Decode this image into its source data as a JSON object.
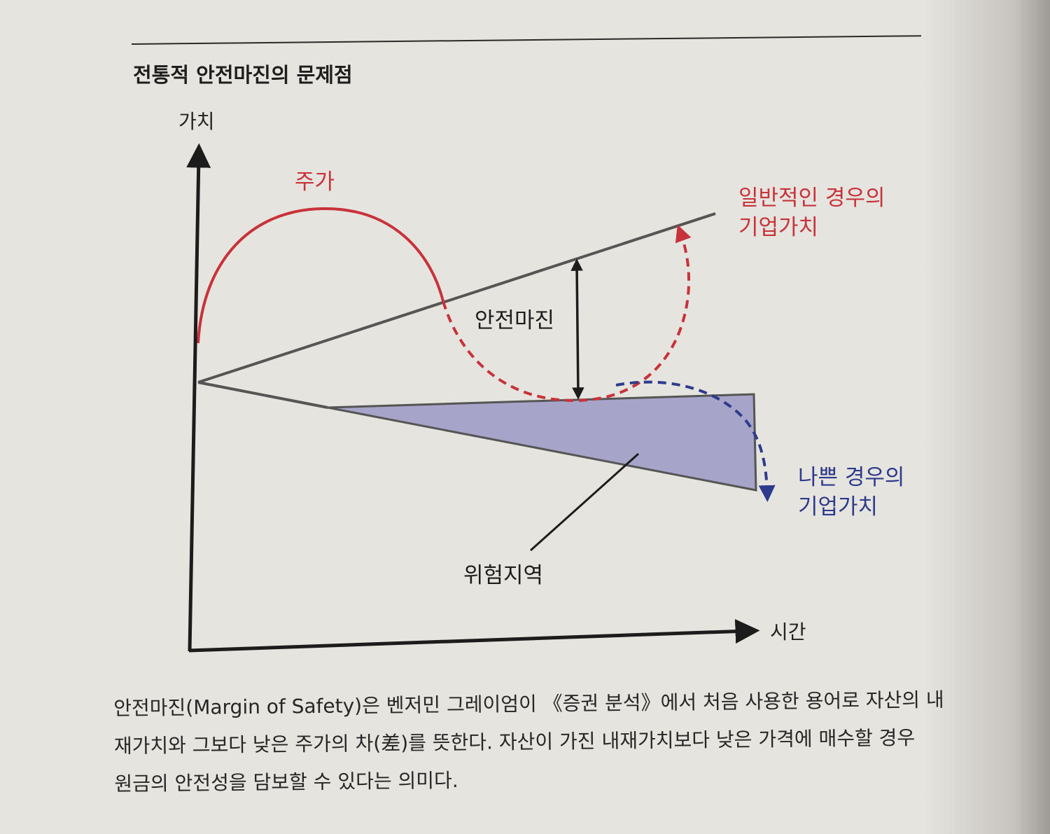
{
  "title": "전통적 안전마진의 문제점",
  "diagram": {
    "y_axis_label": "가치",
    "x_axis_label": "시간",
    "stock_price_label": "주가",
    "normal_case_label": [
      "일반적인 경우의",
      "기업가치"
    ],
    "bad_case_label": [
      "나쁜 경우의",
      "기업가치"
    ],
    "margin_label": "안전마진",
    "risk_zone_label": "위험지역"
  },
  "caption": {
    "lines": [
      "안전마진(Margin of Safety)은 벤저민 그레이엄이 《증권 분석》에서 처음 사용한 용어로 자산의 내",
      "재가치와 그보다 낮은 주가의 차(差)를 뜻한다. 자산이 가진 내재가치보다 낮은 가격에 매수할 경우",
      "원금의 안전성을 담보할 수 있다는 의미다."
    ]
  },
  "colors": {
    "stock_price": "#c8323a",
    "bad_case": "#2e3a8c",
    "value_line": "#555555",
    "risk_zone_fill": "#a6a4c8",
    "axis": "#1c1c1c"
  }
}
